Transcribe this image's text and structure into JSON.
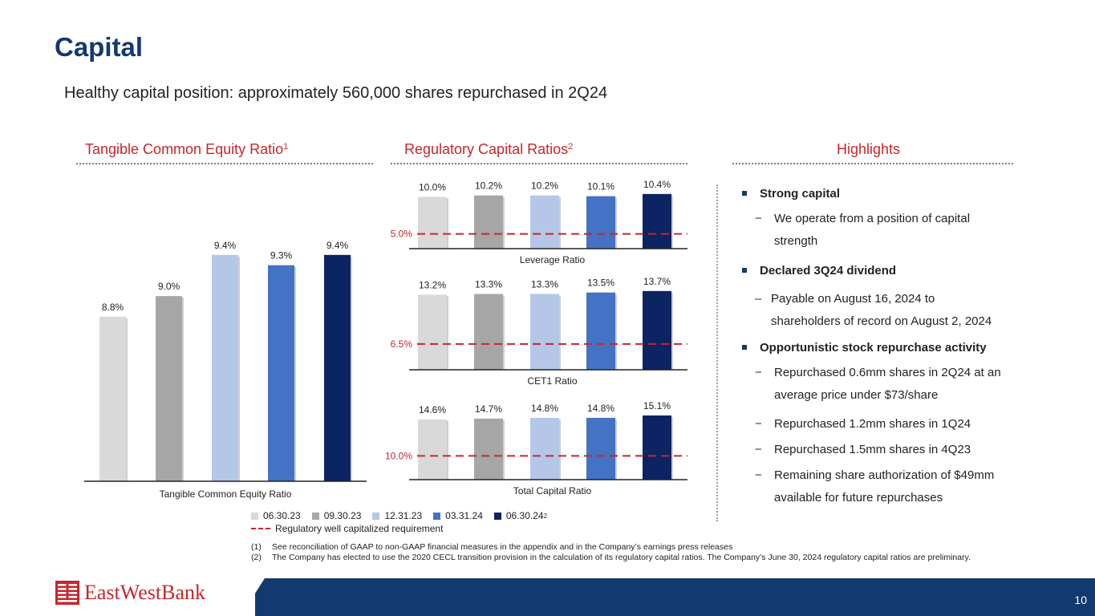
{
  "title": "Capital",
  "subtitle": "Healthy capital position: approximately 560,000 shares repurchased in 2Q24",
  "sections": {
    "tce_title": "Tangible Common Equity Ratio",
    "tce_sup": "1",
    "reg_title": "Regulatory Capital Ratios",
    "reg_sup": "2",
    "highlights_title": "Highlights"
  },
  "colors": {
    "period_colors": [
      "#d9d9d9",
      "#a6a6a6",
      "#b4c7e7",
      "#4472c4",
      "#0c2461"
    ],
    "accent_red": "#c8262c",
    "navy": "#133a6e"
  },
  "chart_data": [
    {
      "type": "bar",
      "title": "Tangible Common Equity Ratio",
      "xlabel": "Tangible Common Equity Ratio",
      "categories": [
        "06.30.23",
        "09.30.23",
        "12.31.23",
        "03.31.24",
        "06.30.24"
      ],
      "values": [
        8.8,
        9.0,
        9.4,
        9.3,
        9.4
      ],
      "value_labels": [
        "8.8%",
        "9.0%",
        "9.4%",
        "9.3%",
        "9.4%"
      ],
      "ylim": [
        7.2,
        9.5
      ]
    },
    {
      "type": "bar",
      "title": "Leverage Ratio",
      "xlabel": "Leverage Ratio",
      "categories": [
        "06.30.23",
        "09.30.23",
        "12.31.23",
        "03.31.24",
        "06.30.24"
      ],
      "values": [
        10.0,
        10.2,
        10.2,
        10.1,
        10.4
      ],
      "value_labels": [
        "10.0%",
        "10.2%",
        "10.2%",
        "10.1%",
        "10.4%"
      ],
      "threshold": 5.0,
      "threshold_label": "5.0%",
      "ylim": [
        3.0,
        10.6
      ]
    },
    {
      "type": "bar",
      "title": "CET1 Ratio",
      "xlabel": "CET1 Ratio",
      "categories": [
        "06.30.23",
        "09.30.23",
        "12.31.23",
        "03.31.24",
        "06.30.24"
      ],
      "values": [
        13.2,
        13.3,
        13.3,
        13.5,
        13.7
      ],
      "value_labels": [
        "13.2%",
        "13.3%",
        "13.3%",
        "13.5%",
        "13.7%"
      ],
      "threshold": 6.5,
      "threshold_label": "6.5%",
      "ylim": [
        3.0,
        13.9
      ]
    },
    {
      "type": "bar",
      "title": "Total Capital Ratio",
      "xlabel": "Total Capital Ratio",
      "categories": [
        "06.30.23",
        "09.30.23",
        "12.31.23",
        "03.31.24",
        "06.30.24"
      ],
      "values": [
        14.6,
        14.7,
        14.8,
        14.8,
        15.1
      ],
      "value_labels": [
        "14.6%",
        "14.7%",
        "14.8%",
        "14.8%",
        "15.1%"
      ],
      "threshold": 10.0,
      "threshold_label": "10.0%",
      "ylim": [
        7.0,
        15.3
      ]
    }
  ],
  "legend": {
    "items": [
      "06.30.23",
      "09.30.23",
      "12.31.23",
      "03.31.24",
      "06.30.24"
    ],
    "last_sup": "2",
    "requirement": "Regulatory well capitalized requirement"
  },
  "highlights": {
    "b1": "Strong capital",
    "b1_s1": "We operate from a position of capital strength",
    "b2": "Declared 3Q24 dividend",
    "b2_s1a": "Payable on August 16, 2024 to",
    "b2_s1b": "shareholders of record on August 2, 2024",
    "b3": "Opportunistic stock repurchase activity",
    "b3_s1": "Repurchased 0.6mm shares in 2Q24 at an average price under $73/share",
    "b3_s2": "Repurchased 1.2mm shares in 1Q24",
    "b3_s3": "Repurchased 1.5mm shares in 4Q23",
    "b3_s4": "Remaining share authorization of $49mm available for future repurchases",
    "dash": "−",
    "dash2": "–"
  },
  "footnotes": [
    {
      "num": "(1)",
      "text": "See reconciliation of GAAP to non-GAAP financial measures in the appendix and in the Company’s earnings press releases"
    },
    {
      "num": "(2)",
      "text": "The Company has elected to use the 2020 CECL transition provision in the calculation of its regulatory capital ratios. The Company’s June 30, 2024 regulatory capital ratios are preliminary."
    }
  ],
  "footer": {
    "logo_text": "EastWestBank",
    "page_number": "10"
  }
}
